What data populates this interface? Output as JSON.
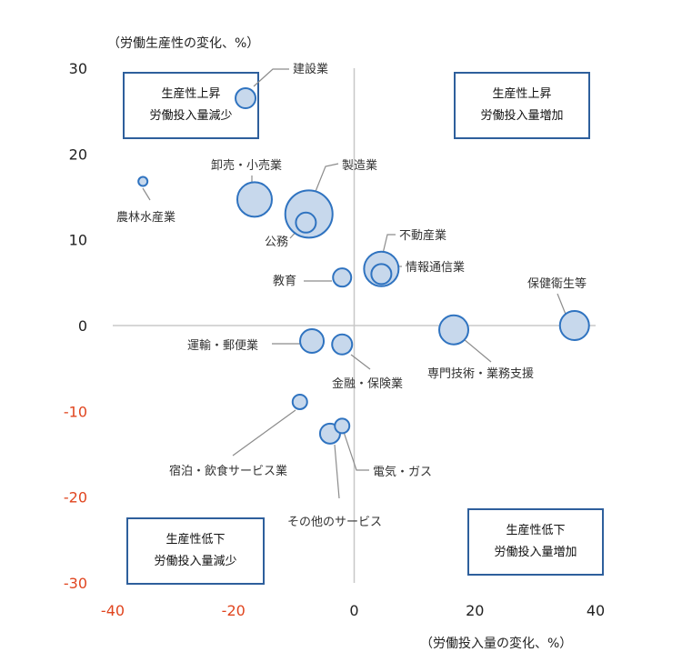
{
  "chart_data": {
    "type": "scatter",
    "ylabel": "（労働生産性の変化、%）",
    "xlabel": "（労働投入量の変化、%）",
    "xlim": [
      -40,
      40
    ],
    "ylim": [
      -30,
      30
    ],
    "x_ticks": [
      -40,
      -20,
      0,
      20,
      40
    ],
    "y_ticks": [
      30,
      20,
      10,
      0,
      -10,
      -20,
      -30
    ],
    "negative_tick_color": "#e0451f",
    "bubble_fill": "#c7d8ec",
    "bubble_stroke": "#2f73c0",
    "points": [
      {
        "label": "建設業",
        "x": -18,
        "y": 26.5,
        "r": 11
      },
      {
        "label": "農林水産業",
        "x": -35,
        "y": 16.8,
        "r": 5
      },
      {
        "label": "卸売・小売業",
        "x": -16.5,
        "y": 14.7,
        "r": 19
      },
      {
        "label": "製造業",
        "x": -7.5,
        "y": 13,
        "r": 26
      },
      {
        "label": "公務",
        "x": -8,
        "y": 12,
        "r": 11
      },
      {
        "label": "不動産業",
        "x": 4.5,
        "y": 6.6,
        "r": 19
      },
      {
        "label": "情報通信業",
        "x": 4.5,
        "y": 6,
        "r": 11
      },
      {
        "label": "教育",
        "x": -2,
        "y": 5.6,
        "r": 10
      },
      {
        "label": "保健衛生等",
        "x": 36.5,
        "y": 0,
        "r": 16
      },
      {
        "label": "専門技術・業務支援",
        "x": 16.5,
        "y": -0.5,
        "r": 16
      },
      {
        "label": "運輸・郵便業",
        "x": -7,
        "y": -1.8,
        "r": 13
      },
      {
        "label": "金融・保険業",
        "x": -2,
        "y": -2.2,
        "r": 11
      },
      {
        "label": "宿泊・飲食サービス業",
        "x": -9,
        "y": -8.9,
        "r": 8
      },
      {
        "label": "電気・ガス",
        "x": -2,
        "y": -11.7,
        "r": 8
      },
      {
        "label": "その他のサービス",
        "x": -4,
        "y": -12.6,
        "r": 11
      }
    ],
    "quadrants": [
      {
        "position": "top-left",
        "line1": "生産性上昇",
        "line2": "労働投入量減少"
      },
      {
        "position": "top-right",
        "line1": "生産性上昇",
        "line2": "労働投入量増加"
      },
      {
        "position": "bottom-left",
        "line1": "生産性低下",
        "line2": "労働投入量減少"
      },
      {
        "position": "bottom-right",
        "line1": "生産性低下",
        "line2": "労働投入量増加"
      }
    ]
  }
}
